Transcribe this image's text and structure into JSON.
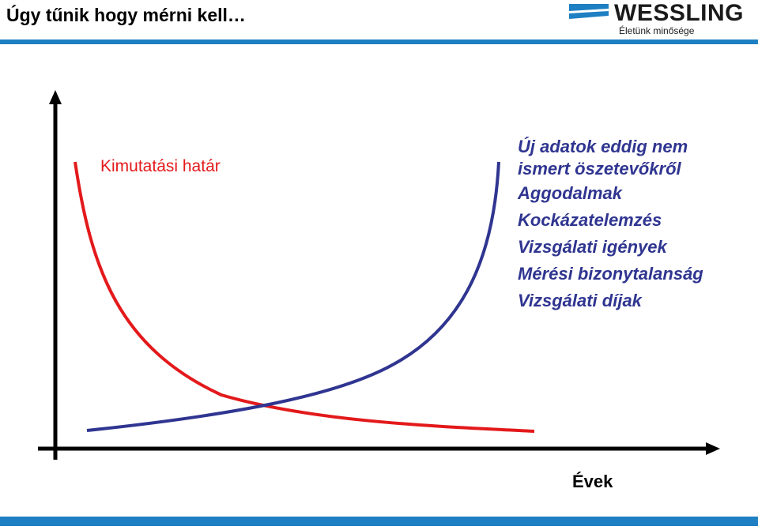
{
  "header": {
    "title": "Úgy tűnik hogy mérni kell…"
  },
  "logo": {
    "name": "WESSLING",
    "tagline": "Életünk minősége"
  },
  "red_curve": {
    "label": "Kimutatási határ"
  },
  "blue_curve": {
    "lines": [
      "Új adatok eddig nem",
      "ismert öszetevőkről",
      "Aggodalmak",
      "Kockázatelemzés",
      "Vizsgálati igények",
      "Mérési bizonytalanság",
      "Vizsgálati díjak"
    ]
  },
  "x_axis": {
    "label": "Évek"
  }
}
